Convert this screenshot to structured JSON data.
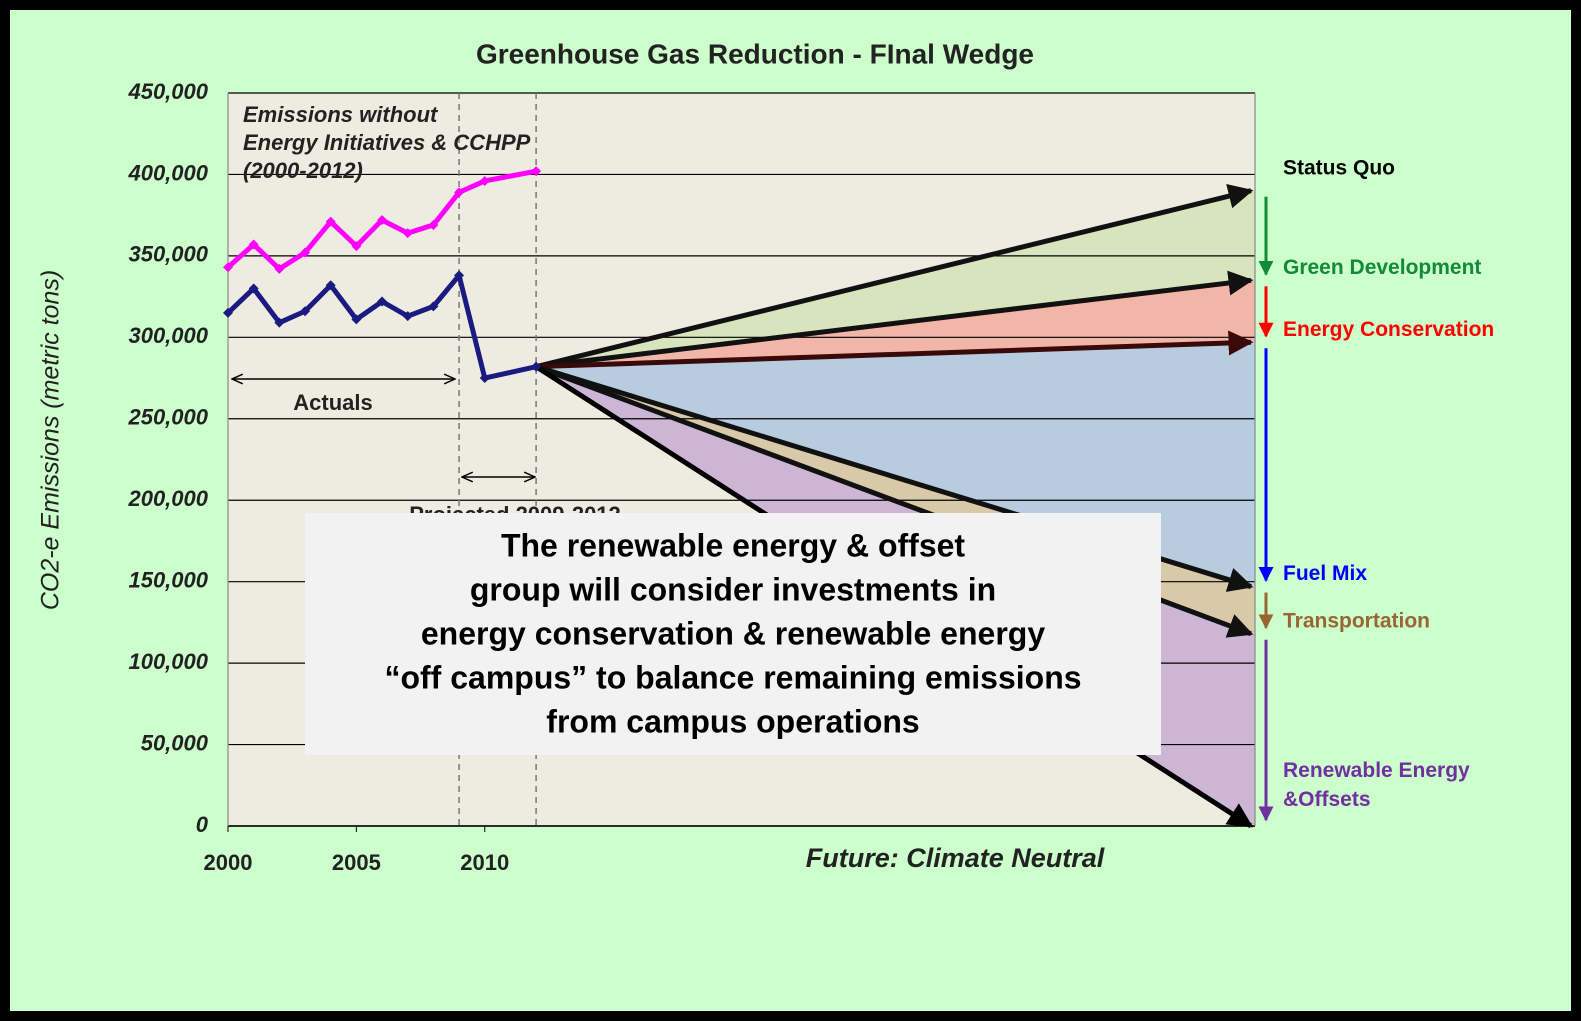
{
  "chart_data": {
    "type": "line",
    "title": "Greenhouse Gas Reduction - FInal Wedge",
    "y_label": "CO2-e Emissions (metric tons)",
    "x_label": "Future: Climate Neutral",
    "xlim": [
      2000,
      2040
    ],
    "xticks": [
      2000,
      2005,
      2010
    ],
    "ylim": [
      0,
      450000
    ],
    "yticks": [
      0,
      {
        "value": 50000,
        "label": "50,000"
      },
      {
        "value": 100000,
        "label": "100,000"
      },
      {
        "value": 150000,
        "label": "150,000"
      },
      {
        "value": 200000,
        "label": "200,000"
      },
      {
        "value": 250000,
        "label": "250,000"
      },
      {
        "value": 300000,
        "label": "300,000"
      },
      {
        "value": 350000,
        "label": "350,000"
      },
      {
        "value": 400000,
        "label": "400,000"
      },
      {
        "value": 450000,
        "label": "450,000"
      }
    ],
    "grid": true,
    "x": [
      2000,
      2001,
      2002,
      2003,
      2004,
      2005,
      2006,
      2007,
      2008,
      2009,
      2010,
      2012
    ],
    "series": [
      {
        "name": "Emissions without Energy Initiatives & CCHPP",
        "color": "#ff00ff",
        "values": [
          343000,
          357000,
          342000,
          352000,
          371000,
          356000,
          372000,
          364000,
          369000,
          389000,
          396000,
          402000
        ]
      },
      {
        "name": "Actuals",
        "color": "#1a1a80",
        "values": [
          315000,
          330000,
          309000,
          316000,
          332000,
          311000,
          322000,
          313000,
          319000,
          338000,
          275000,
          282000
        ]
      }
    ],
    "reference_lines_x": [
      2009,
      2012
    ],
    "annotations": {
      "emissions_lines": [
        "Emissions without",
        "Energy Initiatives & CCHPP",
        "(2000-2012)"
      ],
      "actuals": "Actuals",
      "projected": "Projected 2009-2012"
    },
    "projections": {
      "x": [
        2012,
        2040
      ],
      "series": [
        {
          "name": "Status Quo",
          "color": "#000000",
          "line_color": "#111111",
          "fill": "#d7e4bd",
          "values": [
            282000,
            390000
          ]
        },
        {
          "name": "Green Development",
          "color": "#138a36",
          "line_color": "#111111",
          "fill": "#f2b6a8",
          "values": [
            282000,
            335000
          ]
        },
        {
          "name": "Energy Conservation",
          "color": "#ff0000",
          "line_color": "#3a0a0a",
          "fill": "#b7cddf",
          "values": [
            282000,
            297000
          ]
        },
        {
          "name": "Fuel Mix",
          "color": "#0000ff",
          "line_color": "#111111",
          "fill": "#d8c9a9",
          "values": [
            282000,
            147000
          ]
        },
        {
          "name": "Transportation",
          "color": "#996633",
          "line_color": "#111111",
          "fill": "#ccb5d5",
          "values": [
            282000,
            118000
          ]
        },
        {
          "name": "Renewable Energy &Offsets",
          "color": "#7030a0",
          "line_color": "#000000",
          "values": [
            282000,
            0
          ]
        }
      ]
    },
    "box_lines": [
      "The renewable energy & offset",
      "group will consider investments in",
      "energy conservation & renewable energy",
      "“off campus” to balance remaining emissions",
      "from campus operations"
    ]
  }
}
